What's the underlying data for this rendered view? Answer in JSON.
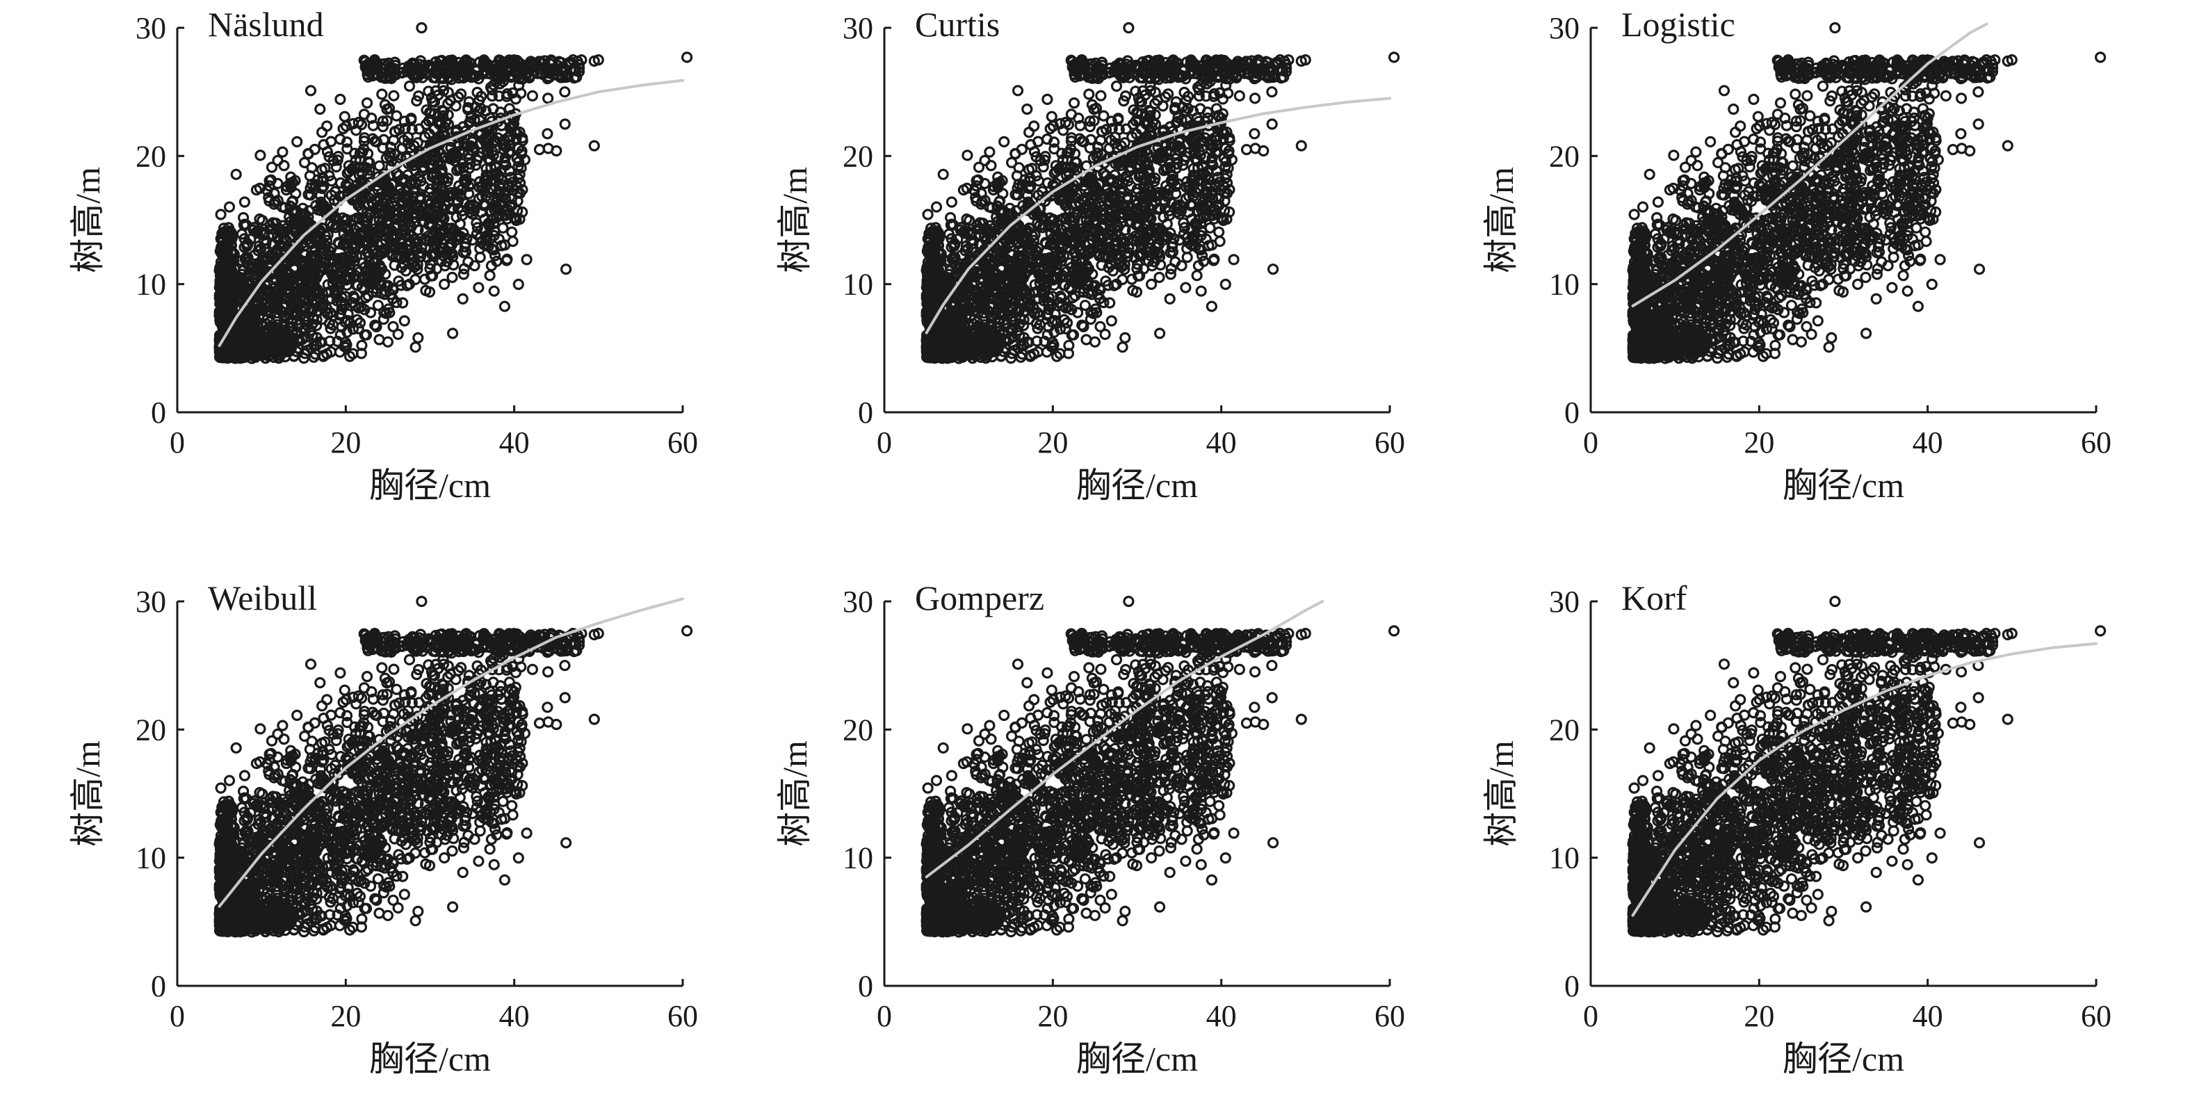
{
  "chart_data": [
    {
      "type": "scatter",
      "title": "Näslund",
      "xlabel": "胸径/cm",
      "ylabel": "树高/m",
      "xlim": [
        0,
        60
      ],
      "ylim": [
        0,
        30
      ],
      "xticks": [
        "0",
        "20",
        "40",
        "60"
      ],
      "yticks": [
        "0",
        "10",
        "20",
        "30"
      ],
      "grid": false,
      "point_style": "open circle",
      "fitted_curve": {
        "color": "#c8c8c8",
        "points": [
          [
            5,
            5.2
          ],
          [
            7,
            7.4
          ],
          [
            10,
            10.2
          ],
          [
            15,
            13.8
          ],
          [
            20,
            16.6
          ],
          [
            25,
            18.8
          ],
          [
            30,
            20.6
          ],
          [
            35,
            22.0
          ],
          [
            40,
            23.2
          ],
          [
            45,
            24.2
          ],
          [
            50,
            25.0
          ],
          [
            55,
            25.5
          ],
          [
            60,
            25.9
          ]
        ]
      }
    },
    {
      "type": "scatter",
      "title": "Curtis",
      "xlabel": "胸径/cm",
      "ylabel": "树高/m",
      "xlim": [
        0,
        60
      ],
      "ylim": [
        0,
        30
      ],
      "xticks": [
        "0",
        "20",
        "40",
        "60"
      ],
      "yticks": [
        "0",
        "10",
        "20",
        "30"
      ],
      "grid": false,
      "point_style": "open circle",
      "fitted_curve": {
        "color": "#c8c8c8",
        "points": [
          [
            5,
            6.2
          ],
          [
            7,
            8.4
          ],
          [
            10,
            11.2
          ],
          [
            15,
            14.6
          ],
          [
            20,
            17.2
          ],
          [
            25,
            19.2
          ],
          [
            30,
            20.7
          ],
          [
            35,
            21.8
          ],
          [
            40,
            22.6
          ],
          [
            45,
            23.3
          ],
          [
            50,
            23.8
          ],
          [
            55,
            24.2
          ],
          [
            60,
            24.5
          ]
        ]
      }
    },
    {
      "type": "scatter",
      "title": "Logistic",
      "xlabel": "胸径/cm",
      "ylabel": "树高/m",
      "xlim": [
        0,
        60
      ],
      "ylim": [
        0,
        30
      ],
      "xticks": [
        "0",
        "20",
        "40",
        "60"
      ],
      "yticks": [
        "0",
        "10",
        "20",
        "30"
      ],
      "grid": false,
      "point_style": "open circle",
      "fitted_curve": {
        "color": "#c8c8c8",
        "points": [
          [
            5,
            8.3
          ],
          [
            10,
            10.3
          ],
          [
            15,
            12.7
          ],
          [
            20,
            15.4
          ],
          [
            25,
            18.2
          ],
          [
            30,
            21.2
          ],
          [
            35,
            24.2
          ],
          [
            40,
            27.2
          ],
          [
            45,
            29.6
          ],
          [
            47,
            30.3
          ]
        ]
      }
    },
    {
      "type": "scatter",
      "title": "Weibull",
      "xlabel": "胸径/cm",
      "ylabel": "树高/m",
      "xlim": [
        0,
        60
      ],
      "ylim": [
        0,
        30
      ],
      "xticks": [
        "0",
        "20",
        "40",
        "60"
      ],
      "yticks": [
        "0",
        "10",
        "20",
        "30"
      ],
      "grid": false,
      "point_style": "open circle",
      "fitted_curve": {
        "color": "#c8c8c8",
        "points": [
          [
            5,
            6.2
          ],
          [
            10,
            10.3
          ],
          [
            15,
            13.8
          ],
          [
            20,
            17.0
          ],
          [
            25,
            19.6
          ],
          [
            30,
            21.8
          ],
          [
            35,
            23.8
          ],
          [
            40,
            25.6
          ],
          [
            45,
            27.2
          ],
          [
            50,
            28.3
          ],
          [
            55,
            29.3
          ],
          [
            60,
            30.2
          ]
        ]
      }
    },
    {
      "type": "scatter",
      "title": "Gomperz",
      "xlabel": "胸径/cm",
      "ylabel": "树高/m",
      "xlim": [
        0,
        60
      ],
      "ylim": [
        0,
        30
      ],
      "xticks": [
        "0",
        "20",
        "40",
        "60"
      ],
      "yticks": [
        "0",
        "10",
        "20",
        "30"
      ],
      "grid": false,
      "point_style": "open circle",
      "fitted_curve": {
        "color": "#c8c8c8",
        "points": [
          [
            5,
            8.5
          ],
          [
            10,
            11.0
          ],
          [
            15,
            13.8
          ],
          [
            20,
            16.5
          ],
          [
            25,
            19.0
          ],
          [
            30,
            21.5
          ],
          [
            35,
            23.8
          ],
          [
            40,
            25.7
          ],
          [
            45,
            27.4
          ],
          [
            50,
            29.3
          ],
          [
            52,
            30.0
          ]
        ]
      }
    },
    {
      "type": "scatter",
      "title": "Korf",
      "xlabel": "胸径/cm",
      "ylabel": "树高/m",
      "xlim": [
        0,
        60
      ],
      "ylim": [
        0,
        30
      ],
      "xticks": [
        "0",
        "20",
        "40",
        "60"
      ],
      "yticks": [
        "0",
        "10",
        "20",
        "30"
      ],
      "grid": false,
      "point_style": "open circle",
      "fitted_curve": {
        "color": "#c8c8c8",
        "points": [
          [
            5,
            5.5
          ],
          [
            10,
            10.6
          ],
          [
            15,
            14.6
          ],
          [
            20,
            17.6
          ],
          [
            25,
            19.8
          ],
          [
            30,
            21.5
          ],
          [
            35,
            23.0
          ],
          [
            40,
            24.2
          ],
          [
            45,
            25.2
          ],
          [
            50,
            25.9
          ],
          [
            55,
            26.4
          ],
          [
            60,
            26.7
          ]
        ]
      }
    }
  ]
}
